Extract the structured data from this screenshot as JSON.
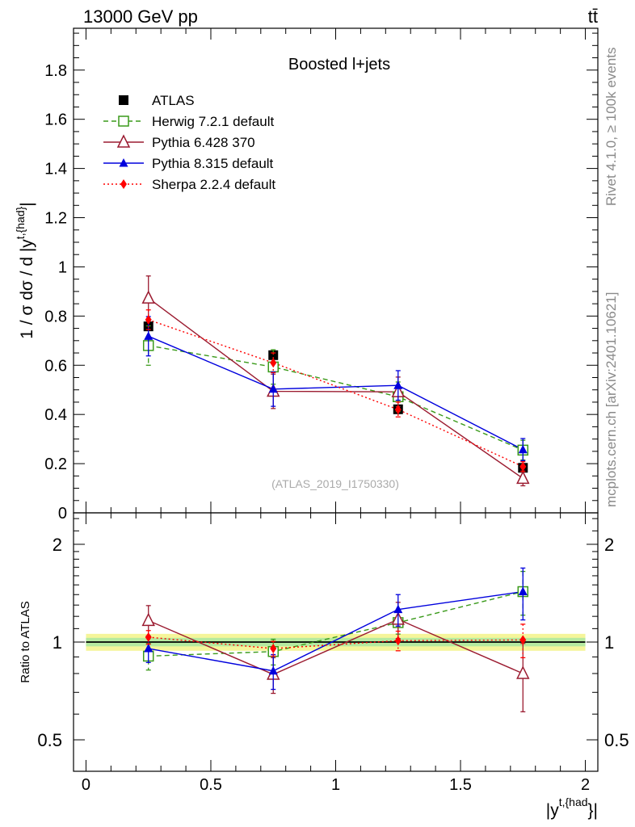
{
  "header": {
    "energy_label": "13000 GeV pp",
    "process_label": "tt̄"
  },
  "side_labels": {
    "rivet": "Rivet 4.1.0, ≥ 100k events",
    "mcplots": "mcplots.cern.ch [arXiv:2401.10621]"
  },
  "chart_data": [
    {
      "type": "line",
      "title": "Boosted l+jets",
      "analysis_tag": "(ATLAS_2019_I1750330)",
      "ylabel": "1 / σ dσ / d |y^{t,{had}}|",
      "ylabel_main": "1 / σ dσ / d |y",
      "ylabel_sup": "t,{had}",
      "ylabel_end": "|",
      "xlabel": "|y^{t,{had}}|",
      "xlim": [
        -0.05,
        2.05
      ],
      "ylim": [
        0,
        1.97
      ],
      "x": [
        0.25,
        0.75,
        1.25,
        1.75
      ],
      "y_ticks": [
        0,
        0.2,
        0.4,
        0.6,
        0.8,
        1,
        1.2,
        1.4,
        1.6,
        1.8
      ],
      "y_tick_labels": [
        "0",
        "0.2",
        "0.4",
        "0.6",
        "0.8",
        "1",
        "1.2",
        "1.4",
        "1.6",
        "1.8"
      ],
      "legend_position": "top-left",
      "series": [
        {
          "name": "ATLAS",
          "color": "#000000",
          "marker": "square-filled",
          "line": "none",
          "values": [
            0.758,
            0.641,
            0.421,
            0.183
          ],
          "errors": [
            0.012,
            0.012,
            0.015,
            0.012
          ]
        },
        {
          "name": "Herwig 7.2.1 default",
          "color": "#3a9a1a",
          "marker": "square-open",
          "line": "dashed",
          "values": [
            0.68,
            0.593,
            0.472,
            0.255
          ],
          "errors": [
            0.08,
            0.07,
            0.06,
            0.04
          ]
        },
        {
          "name": "Pythia 6.428 370",
          "color": "#9b1b30",
          "marker": "triangle-open",
          "line": "solid",
          "values": [
            0.873,
            0.494,
            0.492,
            0.14
          ],
          "errors": [
            0.09,
            0.07,
            0.06,
            0.03
          ]
        },
        {
          "name": "Pythia 8.315 default",
          "color": "#0000dd",
          "marker": "triangle-filled",
          "line": "solid",
          "values": [
            0.718,
            0.503,
            0.518,
            0.257
          ],
          "errors": [
            0.08,
            0.07,
            0.06,
            0.045
          ]
        },
        {
          "name": "Sherpa 2.2.4 default",
          "color": "#ff0000",
          "marker": "diamond-filled",
          "line": "dotted",
          "values": [
            0.785,
            0.61,
            0.42,
            0.188
          ],
          "errors": [
            0.04,
            0.04,
            0.03,
            0.02
          ]
        }
      ]
    },
    {
      "type": "line",
      "ylabel": "Ratio to ATLAS",
      "xlabel": "|y^{t,{had}}|",
      "xlabel_main": "|y",
      "xlabel_sup": "t,{had",
      "xlabel_end": "}|",
      "xlim": [
        -0.05,
        2.05
      ],
      "ylim": [
        0.4,
        2.5
      ],
      "y_scale": "log",
      "x": [
        0.25,
        0.75,
        1.25,
        1.75
      ],
      "x_ticks": [
        0,
        0.5,
        1,
        1.5,
        2
      ],
      "x_tick_labels": [
        "0",
        "0.5",
        "1",
        "1.5",
        "2"
      ],
      "y_ticks": [
        0.5,
        1,
        2
      ],
      "y_tick_labels": [
        "0.5",
        "1",
        "2"
      ],
      "reference_band": {
        "inner": 0.03,
        "outer": 0.06
      },
      "series": [
        {
          "name": "Herwig 7.2.1 default",
          "color": "#3a9a1a",
          "marker": "square-open",
          "line": "dashed",
          "values": [
            0.905,
            0.935,
            1.148,
            1.43
          ],
          "errors": [
            0.085,
            0.085,
            0.09,
            0.22
          ]
        },
        {
          "name": "Pythia 6.428 370",
          "color": "#9b1b30",
          "marker": "triangle-open",
          "line": "solid",
          "values": [
            1.165,
            0.795,
            1.175,
            0.8
          ],
          "errors": [
            0.13,
            0.1,
            0.15,
            0.19
          ]
        },
        {
          "name": "Pythia 8.315 default",
          "color": "#0000dd",
          "marker": "triangle-filled",
          "line": "solid",
          "values": [
            0.955,
            0.815,
            1.26,
            1.43
          ],
          "errors": [
            0.09,
            0.1,
            0.14,
            0.26
          ]
        },
        {
          "name": "Sherpa 2.2.4 default",
          "color": "#ff0000",
          "marker": "diamond-filled",
          "line": "dotted",
          "values": [
            1.035,
            0.955,
            1.01,
            1.015
          ],
          "errors": [
            0.05,
            0.05,
            0.07,
            0.12
          ]
        }
      ]
    }
  ]
}
